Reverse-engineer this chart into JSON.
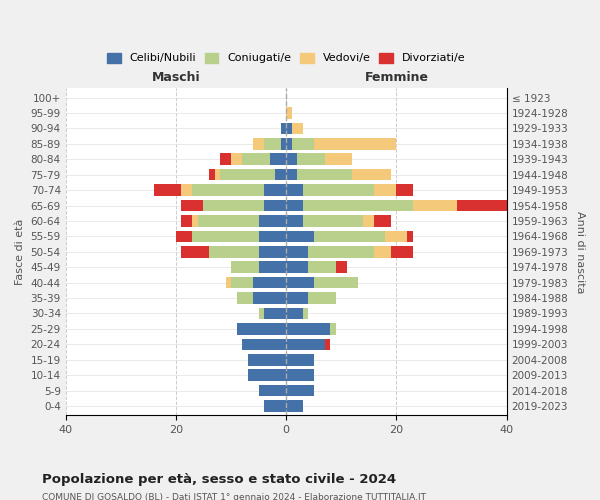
{
  "age_groups": [
    "100+",
    "95-99",
    "90-94",
    "85-89",
    "80-84",
    "75-79",
    "70-74",
    "65-69",
    "60-64",
    "55-59",
    "50-54",
    "45-49",
    "40-44",
    "35-39",
    "30-34",
    "25-29",
    "20-24",
    "15-19",
    "10-14",
    "5-9",
    "0-4"
  ],
  "birth_years": [
    "≤ 1923",
    "1924-1928",
    "1929-1933",
    "1934-1938",
    "1939-1943",
    "1944-1948",
    "1949-1953",
    "1954-1958",
    "1959-1963",
    "1964-1968",
    "1969-1973",
    "1974-1978",
    "1979-1983",
    "1984-1988",
    "1989-1993",
    "1994-1998",
    "1999-2003",
    "2004-2008",
    "2009-2013",
    "2014-2018",
    "2019-2023"
  ],
  "colors": {
    "celibi": "#4472a8",
    "coniugati": "#b8d08c",
    "vedovi": "#f5c97a",
    "divorziati": "#d93030"
  },
  "maschi": {
    "celibi": [
      0,
      0,
      1,
      1,
      3,
      2,
      4,
      4,
      5,
      5,
      5,
      5,
      6,
      6,
      4,
      9,
      8,
      7,
      7,
      5,
      4
    ],
    "coniugati": [
      0,
      0,
      0,
      3,
      5,
      10,
      13,
      11,
      11,
      12,
      9,
      5,
      4,
      3,
      1,
      0,
      0,
      0,
      0,
      0,
      0
    ],
    "vedovi": [
      0,
      0,
      0,
      2,
      2,
      1,
      2,
      0,
      1,
      0,
      0,
      0,
      1,
      0,
      0,
      0,
      0,
      0,
      0,
      0,
      0
    ],
    "divorziati": [
      0,
      0,
      0,
      0,
      2,
      1,
      5,
      4,
      2,
      3,
      5,
      0,
      0,
      0,
      0,
      0,
      0,
      0,
      0,
      0,
      0
    ]
  },
  "femmine": {
    "celibi": [
      0,
      0,
      1,
      1,
      2,
      2,
      3,
      3,
      3,
      5,
      4,
      4,
      5,
      4,
      3,
      8,
      7,
      5,
      5,
      5,
      3
    ],
    "coniugati": [
      0,
      0,
      0,
      4,
      5,
      10,
      13,
      20,
      11,
      13,
      12,
      5,
      8,
      5,
      1,
      1,
      0,
      0,
      0,
      0,
      0
    ],
    "vedovi": [
      0,
      1,
      2,
      15,
      5,
      7,
      4,
      8,
      2,
      4,
      3,
      0,
      0,
      0,
      0,
      0,
      0,
      0,
      0,
      0,
      0
    ],
    "divorziati": [
      0,
      0,
      0,
      0,
      0,
      0,
      3,
      9,
      3,
      1,
      4,
      2,
      0,
      0,
      0,
      0,
      1,
      0,
      0,
      0,
      0
    ]
  },
  "xlim": 40,
  "title": "Popolazione per età, sesso e stato civile - 2024",
  "subtitle": "COMUNE DI GOSALDO (BL) - Dati ISTAT 1° gennaio 2024 - Elaborazione TUTTITALIA.IT",
  "ylabel_left": "Fasce di età",
  "ylabel_right": "Anni di nascita",
  "xlabel_left": "Maschi",
  "xlabel_right": "Femmine",
  "legend_labels": [
    "Celibi/Nubili",
    "Coniugati/e",
    "Vedovi/e",
    "Divorziati/e"
  ],
  "bg_color": "#f0f0f0",
  "plot_bg": "#ffffff"
}
